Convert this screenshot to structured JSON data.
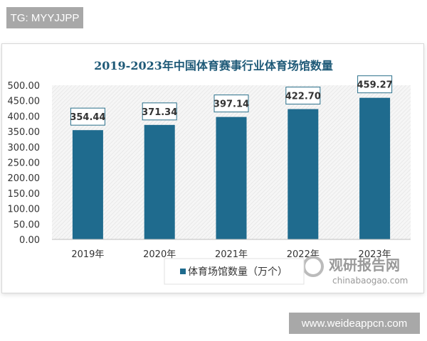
{
  "header_tag": "TG: MYYJJPP",
  "footer_tag": "www.weideappcn.com",
  "watermark": {
    "cn": "观研报告网",
    "en": "chinabaogao.com"
  },
  "chart_data": {
    "type": "bar",
    "title": "2019-2023年中国体育赛事行业体育场馆数量",
    "categories": [
      "2019年",
      "2020年",
      "2021年",
      "2022年",
      "2023年"
    ],
    "series": [
      {
        "name": "体育场馆数量（万个）",
        "values": [
          354.44,
          371.34,
          397.14,
          422.7,
          459.27
        ]
      }
    ],
    "data_labels": [
      "354.44",
      "371.34",
      "397.14",
      "422.70",
      "459.27"
    ],
    "yticks": [
      "0.00",
      "50.00",
      "100.00",
      "150.00",
      "200.00",
      "250.00",
      "300.00",
      "350.00",
      "400.00",
      "450.00",
      "500.00"
    ],
    "ylim": [
      0,
      500
    ],
    "xlabel": "",
    "ylabel": "",
    "legend": "bottom",
    "grid": false,
    "colors": {
      "bar": "#1f6b8e",
      "title": "#1f5a78",
      "label_border": "#2a6f8a"
    }
  }
}
